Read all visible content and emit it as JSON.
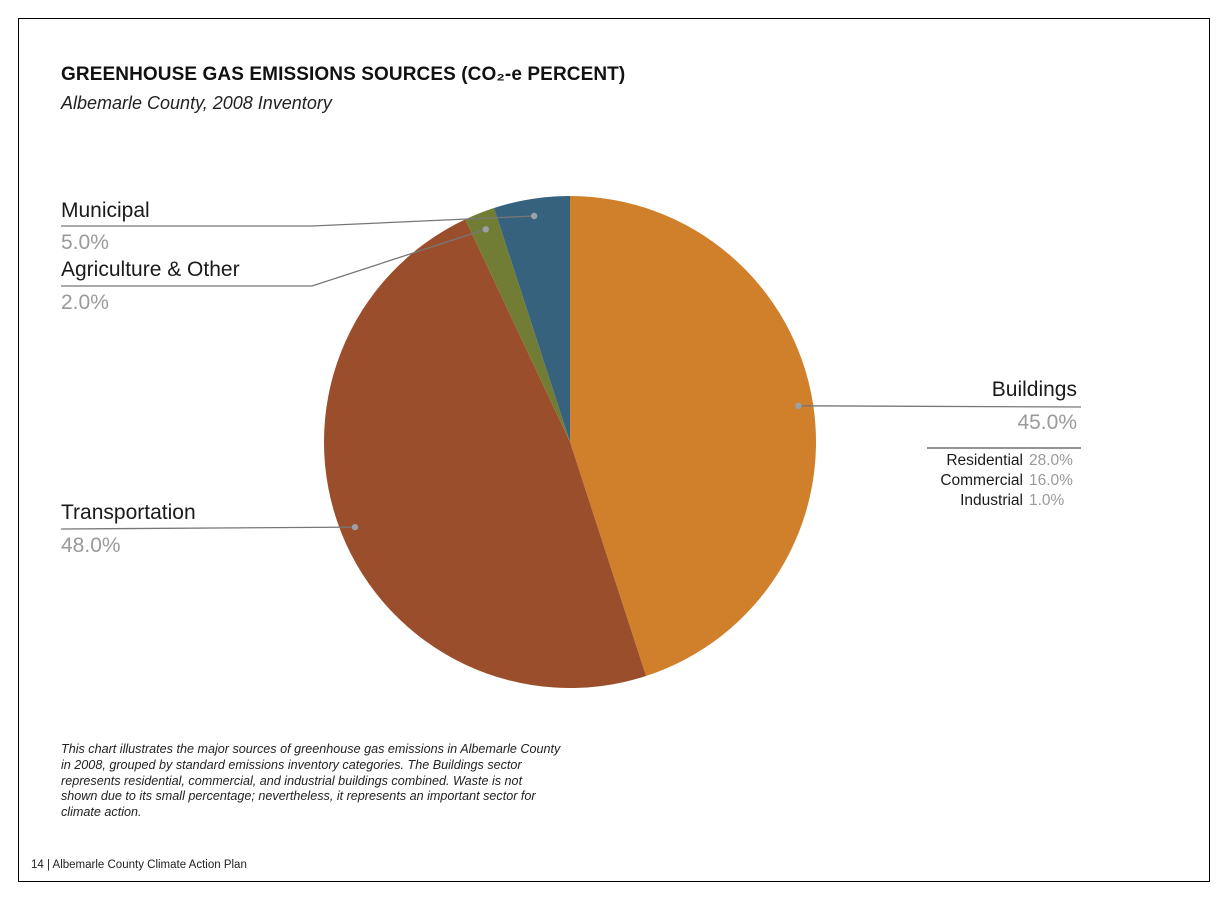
{
  "header": {
    "title": "GREENHOUSE GAS EMISSIONS SOURCES (CO₂-e PERCENT)",
    "subtitle": "Albemarle County, 2008 Inventory"
  },
  "chart_data": {
    "type": "pie",
    "title": "GREENHOUSE GAS EMISSIONS SOURCES (CO₂-e PERCENT)",
    "subtitle": "Albemarle County, 2008 Inventory",
    "unit": "percent",
    "slices": [
      {
        "name": "Buildings",
        "value": 45.0,
        "label": "45.0%",
        "color": "#D07F2B"
      },
      {
        "name": "Transportation",
        "value": 48.0,
        "label": "48.0%",
        "color": "#9B4E2B"
      },
      {
        "name": "Agriculture & Other",
        "value": 2.0,
        "label": "2.0%",
        "color": "#717D34"
      },
      {
        "name": "Municipal",
        "value": 5.0,
        "label": "5.0%",
        "color": "#37627E"
      }
    ],
    "breakdown": {
      "parent": "Buildings",
      "items": [
        {
          "name": "Residential",
          "value": 28.0,
          "label": "28.0%"
        },
        {
          "name": "Commercial",
          "value": 16.0,
          "label": "16.0%"
        },
        {
          "name": "Industrial",
          "value": 1.0,
          "label": "1.0%"
        }
      ]
    },
    "legend": "callout-labels"
  },
  "note": "This chart illustrates the major sources of greenhouse gas emissions in Albemarle County in 2008, grouped by standard emissions inventory categories. The Buildings sector represents residential, commercial, and industrial buildings combined. Waste is not shown due to its small percentage; nevertheless, it represents an important sector for climate action.",
  "footer": {
    "text": "14 | Albemarle County Climate Action Plan"
  },
  "colors": {
    "leader_line": "#777777",
    "leader_dot": "#9aa0a6",
    "value_text": "#9a9a9a"
  }
}
